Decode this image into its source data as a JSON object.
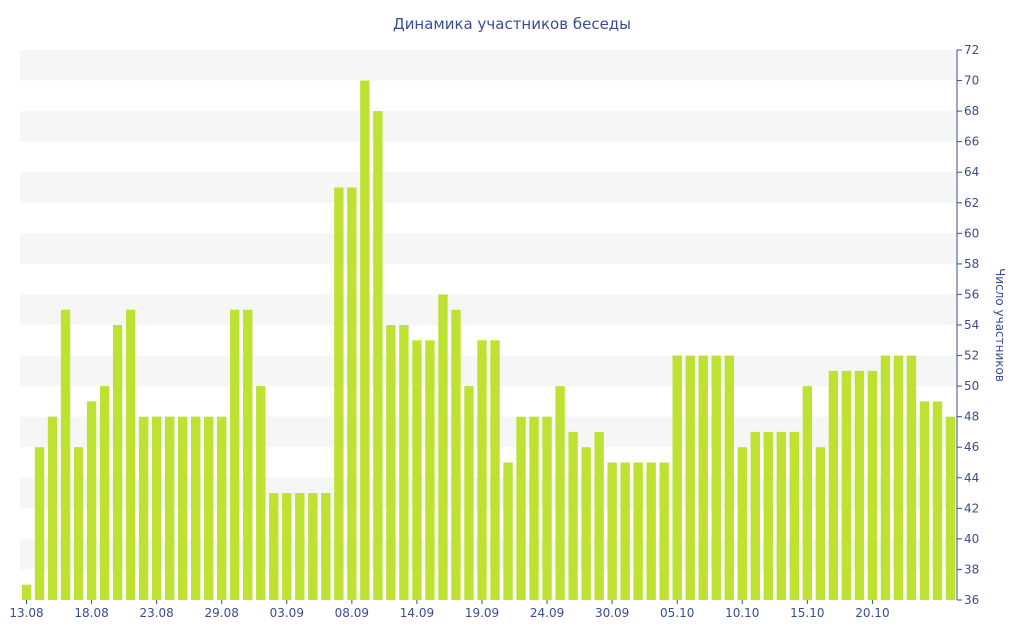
{
  "chart_data": {
    "type": "bar",
    "title": "Динамика участников беседы",
    "xlabel": "",
    "ylabel": "Число участников",
    "ylim": [
      36,
      72
    ],
    "yticks": [
      36,
      38,
      40,
      42,
      44,
      46,
      48,
      50,
      52,
      54,
      56,
      58,
      60,
      62,
      64,
      66,
      68,
      70,
      72
    ],
    "y_axis_position": "right",
    "grid": "horizontal alternating bands",
    "bar_color": "#bde232",
    "x_tick_labels": [
      "13.08",
      "18.08",
      "23.08",
      "29.08",
      "03.09",
      "08.09",
      "14.09",
      "19.09",
      "24.09",
      "30.09",
      "05.10",
      "10.10",
      "15.10",
      "20.10"
    ],
    "x_tick_every": 5,
    "values": [
      37,
      46,
      48,
      55,
      46,
      49,
      50,
      54,
      55,
      48,
      48,
      48,
      48,
      48,
      48,
      48,
      55,
      55,
      50,
      43,
      43,
      43,
      43,
      43,
      63,
      63,
      70,
      68,
      54,
      54,
      53,
      53,
      56,
      55,
      50,
      53,
      53,
      45,
      48,
      48,
      48,
      50,
      47,
      46,
      47,
      45,
      45,
      45,
      45,
      45,
      52,
      52,
      52,
      52,
      52,
      46,
      47,
      47,
      47,
      47,
      50,
      46,
      51,
      51,
      51,
      51,
      52,
      52,
      52,
      49,
      49,
      48
    ]
  }
}
